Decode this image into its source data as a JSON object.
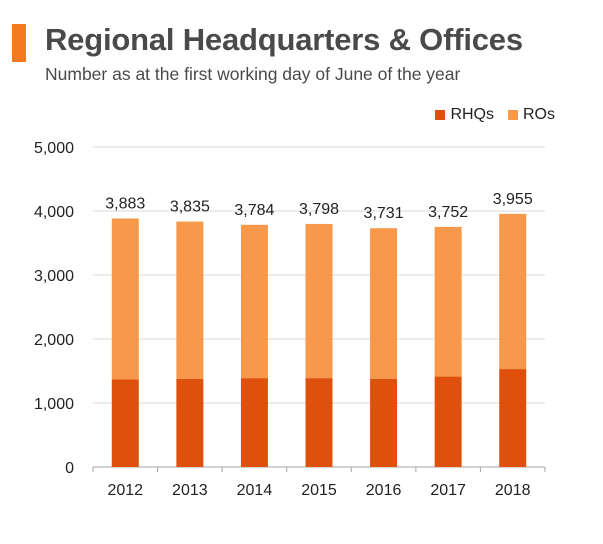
{
  "header": {
    "title": "Regional Headquarters & Offices",
    "subtitle": "Number as at the first working day of June of the year"
  },
  "colors": {
    "accent": "#f47a20",
    "rhq": "#e0500d",
    "ro": "#f7984a",
    "grid": "#d9d9d9",
    "axis": "#a6a6a6"
  },
  "chart_data": {
    "type": "bar",
    "stacked": true,
    "categories": [
      "2012",
      "2013",
      "2014",
      "2015",
      "2016",
      "2017",
      "2018"
    ],
    "series": [
      {
        "name": "RHQs",
        "values": [
          1367,
          1379,
          1389,
          1389,
          1379,
          1413,
          1530
        ]
      },
      {
        "name": "ROs",
        "values": [
          2516,
          2456,
          2395,
          2409,
          2352,
          2339,
          2425
        ]
      }
    ],
    "totals": [
      3883,
      3835,
      3784,
      3798,
      3731,
      3752,
      3955
    ],
    "total_labels": [
      "3,883",
      "3,835",
      "3,784",
      "3,798",
      "3,731",
      "3,752",
      "3,955"
    ],
    "yticks": [
      0,
      1000,
      2000,
      3000,
      4000,
      5000
    ],
    "ytick_labels": [
      "0",
      "1,000",
      "2,000",
      "3,000",
      "4,000",
      "5,000"
    ],
    "ylim": [
      0,
      5000
    ],
    "grid": true,
    "legend_position": "top-right",
    "xlabel": "",
    "ylabel": ""
  }
}
